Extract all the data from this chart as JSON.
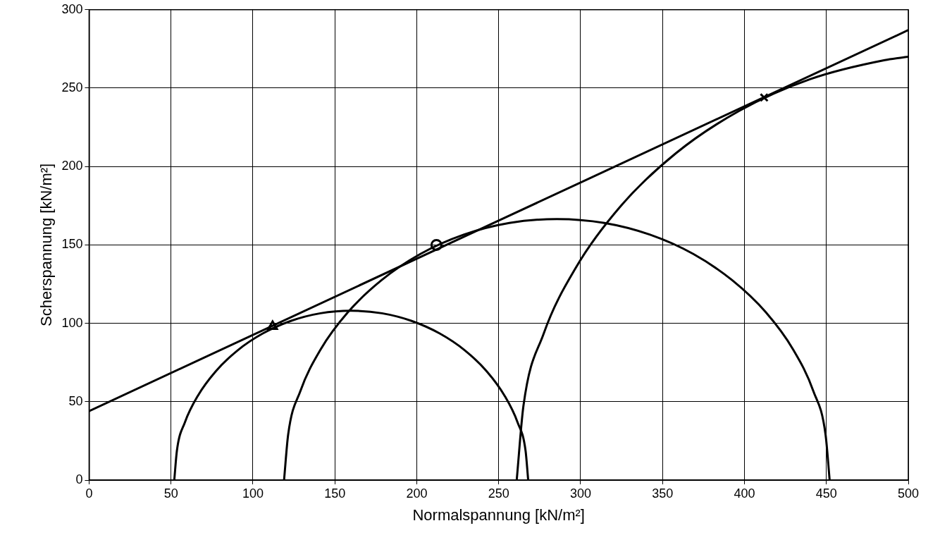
{
  "chart_data": {
    "type": "line",
    "xlabel": "Normalspannung [kN/m²]",
    "ylabel": "Scherspannung [kN/m²]",
    "xlim": [
      0,
      500
    ],
    "xticks": [
      0,
      50,
      100,
      150,
      200,
      250,
      300,
      350,
      400,
      450,
      500
    ],
    "ylim": [
      0,
      300
    ],
    "yticks": [
      0,
      50,
      100,
      150,
      200,
      250,
      300
    ],
    "grid": true,
    "legend": false,
    "marker": "none",
    "line_style": "solid",
    "series": [
      {
        "color": "#000000",
        "x": [
          268,
          266.4,
          261.5,
          253.5,
          242.7,
          229.4,
          214,
          196.9,
          178.8,
          160,
          141.2,
          123.1,
          106,
          90.6,
          77.3,
          66.5,
          58.5,
          53.6,
          52
        ],
        "values": [
          0,
          18.8,
          36.9,
          54,
          69.4,
          82.7,
          93.5,
          101.5,
          106.4,
          108,
          106.4,
          101.5,
          93.5,
          82.7,
          69.4,
          54,
          36.9,
          18.8,
          0
        ]
      },
      {
        "color": "#000000",
        "x": [
          452,
          449.5,
          442,
          429.7,
          413,
          392.5,
          368.8,
          342.4,
          314.5,
          285.5,
          256.5,
          228.6,
          202.2,
          178.5,
          158,
          141.3,
          129,
          121.5,
          119
        ],
        "values": [
          0,
          29,
          56.9,
          83.3,
          107.1,
          127.5,
          144.2,
          156.5,
          164,
          166.5,
          164,
          156.5,
          144.2,
          127.5,
          107.1,
          83.3,
          56.9,
          29,
          0
        ]
      },
      {
        "color": "#000000",
        "x": [
          261,
          265.1,
          277.3,
          297.4,
          324.6,
          358.1,
          397,
          440,
          485.7,
          500
        ],
        "values": [
          0,
          47.3,
          93,
          136,
          174.9,
          208.4,
          235.6,
          255.7,
          267.9,
          270
        ]
      },
      {
        "color": "#000000",
        "x": [
          0,
          500
        ],
        "values": [
          44,
          287
        ]
      },
      {
        "type": "scatter",
        "marker": "triangle",
        "color": "#000000",
        "x": [
          112
        ],
        "values": [
          98
        ]
      },
      {
        "type": "scatter",
        "marker": "circle",
        "color": "#000000",
        "x": [
          212
        ],
        "values": [
          150
        ]
      },
      {
        "type": "scatter",
        "marker": "cross",
        "color": "#000000",
        "x": [
          412
        ],
        "values": [
          244
        ]
      }
    ]
  }
}
